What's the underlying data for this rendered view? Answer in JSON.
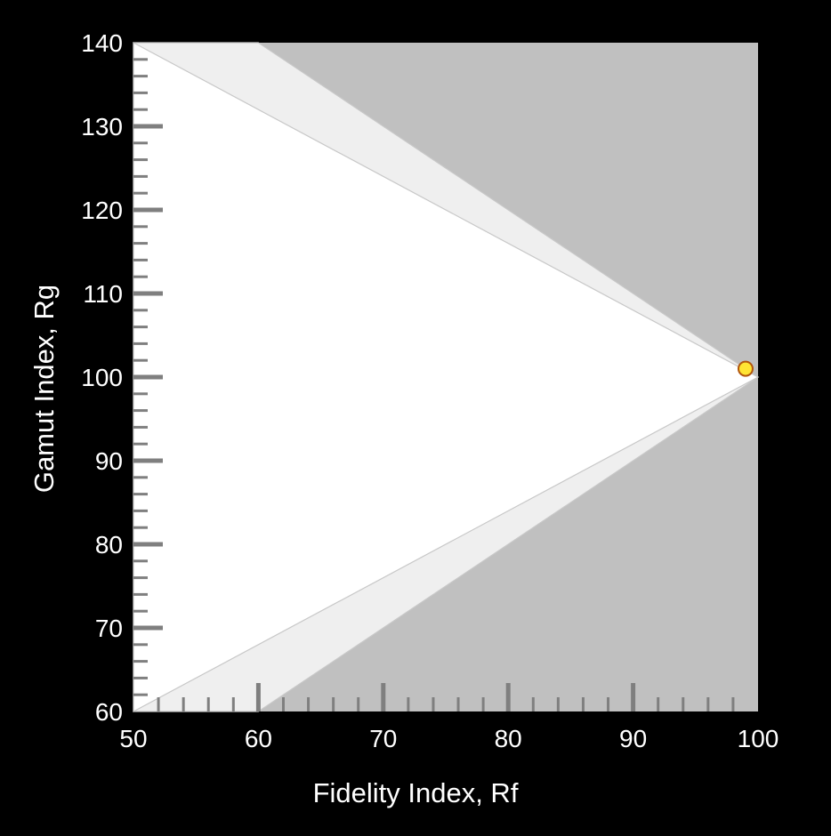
{
  "chart_data": {
    "type": "scatter",
    "title": "",
    "xlabel": "Fidelity Index, Rf",
    "ylabel": "Gamut Index, Rg",
    "xlim": [
      50,
      100
    ],
    "ylim": [
      60,
      140
    ],
    "xticks": [
      "50",
      "60",
      "70",
      "80",
      "90",
      "100"
    ],
    "yticks": [
      "60",
      "70",
      "80",
      "90",
      "100",
      "110",
      "120",
      "130",
      "140"
    ],
    "minor_tick_step": 2,
    "grid": false,
    "regions": [
      {
        "name": "outer",
        "color": "#c0c0c0",
        "polygon": [
          [
            50,
            60
          ],
          [
            100,
            60
          ],
          [
            100,
            140
          ],
          [
            50,
            140
          ]
        ]
      },
      {
        "name": "extended",
        "color": "#efefef",
        "polygon": [
          [
            50,
            140
          ],
          [
            60,
            140
          ],
          [
            100,
            100
          ],
          [
            60,
            60
          ],
          [
            50,
            60
          ]
        ]
      },
      {
        "name": "boundary",
        "color": "#ffffff",
        "polygon": [
          [
            50,
            140
          ],
          [
            100,
            100
          ],
          [
            50,
            60
          ]
        ]
      }
    ],
    "points": [
      {
        "x": 99,
        "y": 101
      }
    ],
    "point_color": "#ffe433",
    "point_edge_color": "#b2560c",
    "background": "#000000"
  }
}
